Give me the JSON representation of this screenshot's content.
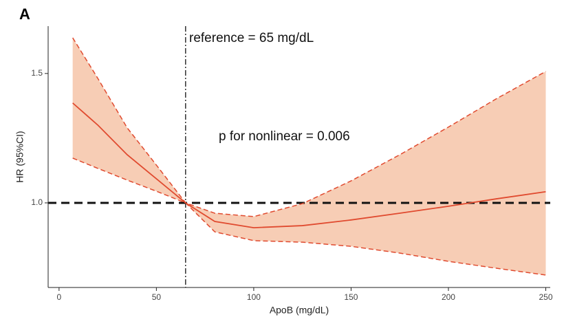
{
  "chart_data": {
    "type": "line",
    "panel_label": "A",
    "xlabel": "ApoB (mg/dL)",
    "ylabel": "HR (95%CI)",
    "annotations": [
      "reference = 65 mg/dL",
      "p for nonlinear = 0.006"
    ],
    "reference_x": 65,
    "hline": 1,
    "x": [
      7,
      20,
      35,
      50,
      65,
      80,
      100,
      125,
      150,
      175,
      200,
      225,
      250
    ],
    "series": [
      {
        "name": "upper",
        "color": "#e04a2f",
        "values": [
          1.638,
          1.48,
          1.29,
          1.146,
          1,
          0.96,
          0.947,
          0.997,
          1.085,
          1.186,
          1.293,
          1.404,
          1.508
        ]
      },
      {
        "name": "estimate",
        "color": "#e04a2f",
        "values": [
          1.386,
          1.3,
          1.186,
          1.093,
          1,
          0.928,
          0.904,
          0.912,
          0.934,
          0.96,
          0.987,
          1.016,
          1.043
        ]
      },
      {
        "name": "lower",
        "color": "#e04a2f",
        "values": [
          1.173,
          1.133,
          1.088,
          1.045,
          1,
          0.888,
          0.854,
          0.848,
          0.832,
          0.806,
          0.774,
          0.747,
          0.721
        ]
      }
    ],
    "band_color": "#f7cdb5",
    "xlim": [
      -5.6,
      252.3
    ],
    "ylim": [
      0.673,
      1.683
    ],
    "xticks": [
      0,
      50,
      100,
      150,
      200,
      250
    ],
    "yticks": [
      {
        "value": 1,
        "label": "1.0"
      },
      {
        "value": 1.5,
        "label": "1.5"
      }
    ]
  }
}
